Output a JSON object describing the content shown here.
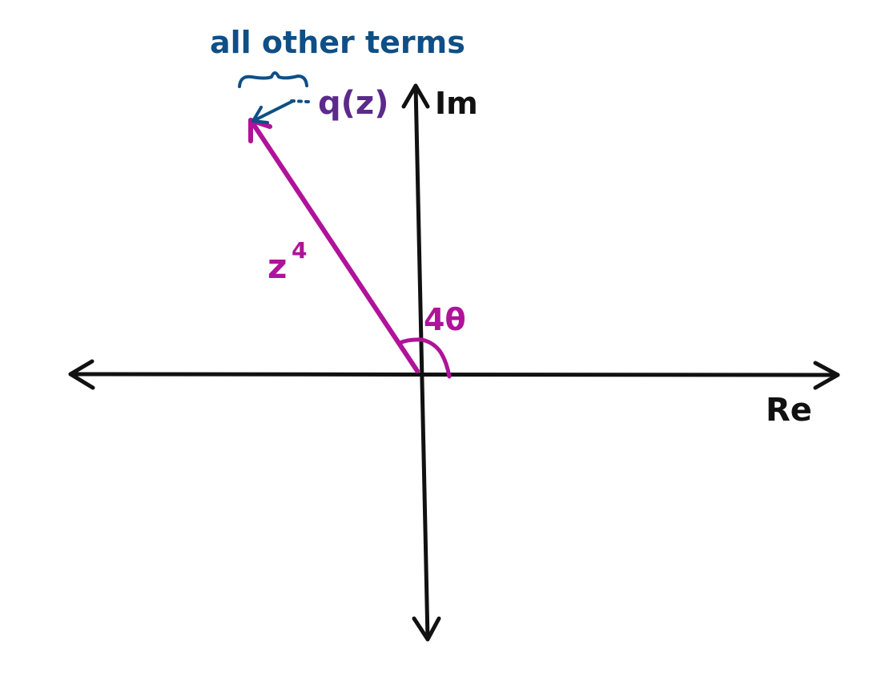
{
  "diagram": {
    "labels": {
      "other_terms": "all other terms",
      "q_of_z": "q(z)",
      "imag_axis": "Im",
      "real_axis": "Re",
      "vector": "z",
      "vector_exponent": "4",
      "angle": "4θ"
    },
    "colors": {
      "axes": "#111111",
      "vector": "#b0129a",
      "other_terms": "#0e4f86",
      "q_of_z": "#5b2a8c"
    }
  }
}
